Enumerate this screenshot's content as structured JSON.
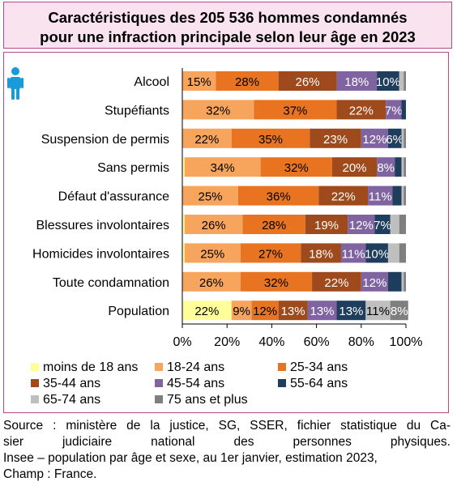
{
  "title": {
    "line1": "Caractéristiques des 205 536 hommes condamnés",
    "line2": "pour une infraction principale selon leur âge en 2023"
  },
  "source": {
    "line1": "Source : ministère de la justice, SG, SSER, fichier statistique du Ca-",
    "line2": "sier judiciaire national des personnes physiques.",
    "line3": "Insee – population par âge et sexe, au 1er janvier, estimation 2023,",
    "line4": "Champ : France."
  },
  "icon": "man-icon",
  "chart_data": {
    "type": "bar",
    "orientation": "horizontal",
    "stacked": true,
    "categories": [
      "Alcool",
      "Stupéfiants",
      "Suspension de permis",
      "Sans permis",
      "Défaut d'assurance",
      "Blessures involontaires",
      "Homicides involontaires",
      "Toute condamnation",
      "Population"
    ],
    "xlim": [
      0,
      100
    ],
    "xticks": [
      "0%",
      "20%",
      "40%",
      "60%",
      "80%",
      "100%"
    ],
    "grid": false,
    "legend_position": "bottom",
    "series": [
      {
        "name": "moins de 18 ans",
        "color": "#ffff99",
        "values": [
          0,
          0,
          0,
          1,
          0,
          1,
          1,
          0,
          22
        ]
      },
      {
        "name": "18-24 ans",
        "color": "#f7a55d",
        "values": [
          15,
          32,
          22,
          34,
          25,
          26,
          25,
          26,
          9
        ]
      },
      {
        "name": "25-34 ans",
        "color": "#e87422",
        "values": [
          28,
          37,
          35,
          32,
          36,
          28,
          27,
          32,
          12
        ]
      },
      {
        "name": "35-44 ans",
        "color": "#9e4a1c",
        "values": [
          26,
          22,
          23,
          20,
          22,
          19,
          18,
          22,
          13
        ]
      },
      {
        "name": "45-54 ans",
        "color": "#8064a2",
        "values": [
          18,
          7,
          12,
          8,
          11,
          12,
          11,
          12,
          13
        ]
      },
      {
        "name": "55-64 ans",
        "color": "#1f3d5c",
        "values": [
          10,
          2,
          6,
          3,
          4,
          7,
          10,
          6,
          13
        ]
      },
      {
        "name": "65-74 ans",
        "color": "#bfbfbf",
        "values": [
          2,
          0,
          1,
          1,
          1,
          4,
          5,
          1,
          11
        ]
      },
      {
        "name": "75 ans et plus",
        "color": "#7f7f7f",
        "values": [
          1,
          0,
          1,
          1,
          1,
          3,
          3,
          1,
          8
        ]
      }
    ],
    "data_labels": [
      [
        "",
        "15%",
        "28%",
        "26%",
        "18%",
        "10%",
        "",
        ""
      ],
      [
        "",
        "32%",
        "37%",
        "22%",
        "7%",
        "",
        "",
        ""
      ],
      [
        "",
        "22%",
        "35%",
        "23%",
        "12%",
        "6%",
        "",
        ""
      ],
      [
        "",
        "34%",
        "32%",
        "20%",
        "8%",
        "",
        "",
        ""
      ],
      [
        "",
        "25%",
        "36%",
        "22%",
        "11%",
        "",
        "",
        ""
      ],
      [
        "",
        "26%",
        "28%",
        "19%",
        "12%",
        "7%",
        "",
        ""
      ],
      [
        "",
        "25%",
        "27%",
        "18%",
        "11%",
        "10%",
        "",
        ""
      ],
      [
        "",
        "26%",
        "32%",
        "22%",
        "12%",
        "",
        "",
        ""
      ],
      [
        "22%",
        "9%",
        "12%",
        "13%",
        "13%",
        "13%",
        "11%",
        "8%"
      ]
    ]
  }
}
